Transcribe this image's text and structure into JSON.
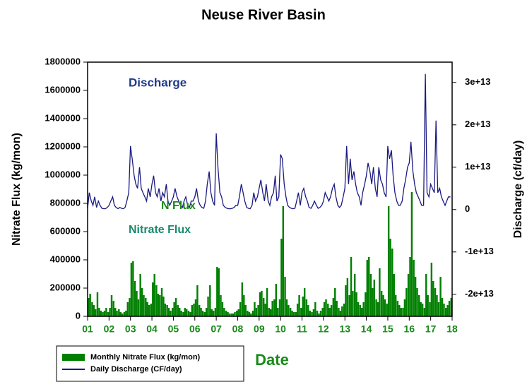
{
  "chart_data": {
    "type": "bar",
    "title": "Neuse River Basin",
    "xlabel": "Date",
    "ylabel": "Nitrate Flux (kg/mon)",
    "y2label": "Discharge (cf/day)",
    "annotations": [
      "Discharge",
      "N Flux",
      "Nitrate Flux"
    ],
    "xlim": [
      1,
      18
    ],
    "xticks": [
      {
        "value": 1,
        "label": "01"
      },
      {
        "value": 2,
        "label": "02"
      },
      {
        "value": 3,
        "label": "03"
      },
      {
        "value": 4,
        "label": "04"
      },
      {
        "value": 5,
        "label": "05"
      },
      {
        "value": 6,
        "label": "06"
      },
      {
        "value": 7,
        "label": "07"
      },
      {
        "value": 8,
        "label": "08"
      },
      {
        "value": 9,
        "label": "09"
      },
      10,
      11,
      12,
      13,
      14,
      15,
      16,
      17,
      18
    ],
    "ylim": [
      0,
      1800000
    ],
    "yticks": [
      0,
      200000,
      400000,
      600000,
      800000,
      1000000,
      1200000,
      1400000,
      1600000,
      1800000
    ],
    "y2lim": [
      -25200000000000.0,
      34800000000000.0
    ],
    "y2ticks": [
      {
        "value": -20000000000000.0,
        "label": "-2e+13"
      },
      {
        "value": -10000000000000.0,
        "label": "-1e+13"
      },
      0,
      {
        "value": 10000000000000.0,
        "label": "1e+13"
      },
      {
        "value": 20000000000000.0,
        "label": "2e+13"
      },
      {
        "value": 30000000000000.0,
        "label": "3e+13"
      }
    ],
    "legend": "bottom-left",
    "x": [
      1.0,
      1.08,
      1.17,
      1.25,
      1.33,
      1.42,
      1.5,
      1.58,
      1.67,
      1.75,
      1.83,
      1.92,
      2.0,
      2.08,
      2.17,
      2.25,
      2.33,
      2.42,
      2.5,
      2.58,
      2.67,
      2.75,
      2.83,
      2.92,
      3.0,
      3.08,
      3.17,
      3.25,
      3.33,
      3.42,
      3.5,
      3.58,
      3.67,
      3.75,
      3.83,
      3.92,
      4.0,
      4.08,
      4.17,
      4.25,
      4.33,
      4.42,
      4.5,
      4.58,
      4.67,
      4.75,
      4.83,
      4.92,
      5.0,
      5.08,
      5.17,
      5.25,
      5.33,
      5.42,
      5.5,
      5.58,
      5.67,
      5.75,
      5.83,
      5.92,
      6.0,
      6.08,
      6.17,
      6.25,
      6.33,
      6.42,
      6.5,
      6.58,
      6.67,
      6.75,
      6.83,
      6.92,
      7.0,
      7.08,
      7.17,
      7.25,
      7.33,
      7.42,
      7.5,
      7.58,
      7.67,
      7.75,
      7.83,
      7.92,
      8.0,
      8.08,
      8.17,
      8.25,
      8.33,
      8.42,
      8.5,
      8.58,
      8.67,
      8.75,
      8.83,
      8.92,
      9.0,
      9.08,
      9.17,
      9.25,
      9.33,
      9.42,
      9.5,
      9.58,
      9.67,
      9.75,
      9.83,
      9.92,
      10.0,
      10.08,
      10.17,
      10.25,
      10.33,
      10.42,
      10.5,
      10.58,
      10.67,
      10.75,
      10.83,
      10.92,
      11.0,
      11.08,
      11.17,
      11.25,
      11.33,
      11.42,
      11.5,
      11.58,
      11.67,
      11.75,
      11.83,
      11.92,
      12.0,
      12.08,
      12.17,
      12.25,
      12.33,
      12.42,
      12.5,
      12.58,
      12.67,
      12.75,
      12.83,
      12.92,
      13.0,
      13.08,
      13.17,
      13.25,
      13.33,
      13.42,
      13.5,
      13.58,
      13.67,
      13.75,
      13.83,
      13.92,
      14.0,
      14.08,
      14.17,
      14.25,
      14.33,
      14.42,
      14.5,
      14.58,
      14.67,
      14.75,
      14.83,
      14.92,
      15.0,
      15.08,
      15.17,
      15.25,
      15.33,
      15.42,
      15.5,
      15.58,
      15.67,
      15.75,
      15.83,
      15.92,
      16.0,
      16.08,
      16.17,
      16.25,
      16.33,
      16.42,
      16.5,
      16.58,
      16.67,
      16.75,
      16.83,
      16.92,
      17.0,
      17.08,
      17.17,
      17.25,
      17.33,
      17.42,
      17.5,
      17.58,
      17.67,
      17.75,
      17.83,
      17.92
    ],
    "series": [
      {
        "name": "Monthly Nitrate Flux (kg/mon)",
        "type": "bar",
        "color": "#008000",
        "values": [
          130000,
          160000,
          100000,
          80000,
          50000,
          170000,
          60000,
          40000,
          30000,
          40000,
          60000,
          30000,
          60000,
          150000,
          110000,
          60000,
          40000,
          50000,
          30000,
          20000,
          30000,
          40000,
          100000,
          130000,
          380000,
          390000,
          250000,
          180000,
          120000,
          300000,
          200000,
          150000,
          130000,
          100000,
          80000,
          90000,
          240000,
          300000,
          220000,
          160000,
          150000,
          200000,
          140000,
          90000,
          80000,
          60000,
          40000,
          60000,
          100000,
          130000,
          80000,
          60000,
          40000,
          30000,
          60000,
          50000,
          40000,
          30000,
          80000,
          90000,
          120000,
          220000,
          80000,
          60000,
          40000,
          30000,
          60000,
          140000,
          220000,
          50000,
          40000,
          60000,
          350000,
          340000,
          150000,
          100000,
          60000,
          40000,
          30000,
          20000,
          20000,
          20000,
          30000,
          40000,
          50000,
          100000,
          240000,
          150000,
          80000,
          40000,
          30000,
          20000,
          40000,
          100000,
          60000,
          80000,
          170000,
          180000,
          130000,
          90000,
          200000,
          60000,
          50000,
          110000,
          120000,
          230000,
          60000,
          120000,
          550000,
          780000,
          280000,
          120000,
          80000,
          60000,
          40000,
          30000,
          30000,
          90000,
          150000,
          60000,
          140000,
          200000,
          120000,
          80000,
          40000,
          30000,
          50000,
          100000,
          40000,
          20000,
          40000,
          60000,
          100000,
          120000,
          90000,
          60000,
          80000,
          130000,
          200000,
          110000,
          60000,
          40000,
          70000,
          90000,
          220000,
          270000,
          150000,
          420000,
          180000,
          300000,
          170000,
          100000,
          80000,
          60000,
          100000,
          170000,
          400000,
          420000,
          300000,
          200000,
          260000,
          120000,
          100000,
          340000,
          180000,
          150000,
          120000,
          90000,
          780000,
          550000,
          480000,
          300000,
          150000,
          110000,
          80000,
          60000,
          60000,
          120000,
          200000,
          300000,
          420000,
          880000,
          400000,
          280000,
          200000,
          150000,
          100000,
          90000,
          60000,
          300000,
          150000,
          100000,
          380000,
          250000,
          200000,
          150000,
          100000,
          280000,
          130000,
          90000,
          60000,
          80000,
          110000,
          130000
        ]
      },
      {
        "name": "Daily Discharge (CF/day)",
        "type": "line",
        "axis": "y2",
        "color": "#1a1a80",
        "values": [
          300000000000.0,
          4000000000000.0,
          2000000000000.0,
          1000000000000.0,
          3000000000000.0,
          500000000000.0,
          2000000000000.0,
          1000000000000.0,
          300000000000.0,
          200000000000.0,
          200000000000.0,
          500000000000.0,
          1000000000000.0,
          2000000000000.0,
          3000000000000.0,
          1000000000000.0,
          500000000000.0,
          200000000000.0,
          500000000000.0,
          300000000000.0,
          200000000000.0,
          500000000000.0,
          2000000000000.0,
          4000000000000.0,
          15000000000000.0,
          12000000000000.0,
          8000000000000.0,
          6000000000000.0,
          5000000000000.0,
          10000000000000.0,
          5000000000000.0,
          4000000000000.0,
          3000000000000.0,
          2000000000000.0,
          5000000000000.0,
          3000000000000.0,
          6000000000000.0,
          8000000000000.0,
          4000000000000.0,
          3000000000000.0,
          5000000000000.0,
          2000000000000.0,
          4000000000000.0,
          3000000000000.0,
          6000000000000.0,
          2000000000000.0,
          1000000000000.0,
          2000000000000.0,
          3000000000000.0,
          5000000000000.0,
          3000000000000.0,
          2000000000000.0,
          1000000000000.0,
          500000000000.0,
          2000000000000.0,
          3000000000000.0,
          1000000000000.0,
          500000000000.0,
          2000000000000.0,
          2000000000000.0,
          3000000000000.0,
          5000000000000.0,
          2000000000000.0,
          1000000000000.0,
          500000000000.0,
          300000000000.0,
          2000000000000.0,
          6000000000000.0,
          9000000000000.0,
          4000000000000.0,
          2000000000000.0,
          1000000000000.0,
          18000000000000.0,
          10000000000000.0,
          4000000000000.0,
          3000000000000.0,
          1000000000000.0,
          500000000000.0,
          300000000000.0,
          200000000000.0,
          200000000000.0,
          300000000000.0,
          500000000000.0,
          1000000000000.0,
          1000000000000.0,
          3000000000000.0,
          6000000000000.0,
          4000000000000.0,
          2000000000000.0,
          500000000000.0,
          300000000000.0,
          200000000000.0,
          1000000000000.0,
          4000000000000.0,
          2000000000000.0,
          3000000000000.0,
          5000000000000.0,
          7000000000000.0,
          4000000000000.0,
          2000000000000.0,
          6000000000000.0,
          2000000000000.0,
          1000000000000.0,
          3000000000000.0,
          4000000000000.0,
          8000000000000.0,
          2000000000000.0,
          3000000000000.0,
          13000000000000.0,
          12000000000000.0,
          6000000000000.0,
          3000000000000.0,
          1000000000000.0,
          500000000000.0,
          300000000000.0,
          200000000000.0,
          300000000000.0,
          2000000000000.0,
          4000000000000.0,
          1000000000000.0,
          4000000000000.0,
          5000000000000.0,
          3000000000000.0,
          2000000000000.0,
          500000000000.0,
          300000000000.0,
          1000000000000.0,
          2000000000000.0,
          1000000000000.0,
          300000000000.0,
          500000000000.0,
          1000000000000.0,
          2000000000000.0,
          4000000000000.0,
          3000000000000.0,
          2000000000000.0,
          3000000000000.0,
          5000000000000.0,
          6000000000000.0,
          3000000000000.0,
          1000000000000.0,
          500000000000.0,
          1000000000000.0,
          3000000000000.0,
          5000000000000.0,
          15000000000000.0,
          6000000000000.0,
          12000000000000.0,
          7000000000000.0,
          9000000000000.0,
          6000000000000.0,
          4000000000000.0,
          3000000000000.0,
          1000000000000.0,
          4000000000000.0,
          6000000000000.0,
          8000000000000.0,
          11000000000000.0,
          9000000000000.0,
          6000000000000.0,
          10000000000000.0,
          5000000000000.0,
          3000000000000.0,
          10000000000000.0,
          7000000000000.0,
          6000000000000.0,
          4000000000000.0,
          3000000000000.0,
          15000000000000.0,
          12000000000000.0,
          14000000000000.0,
          8000000000000.0,
          4000000000000.0,
          2000000000000.0,
          1000000000000.0,
          1000000000000.0,
          2000000000000.0,
          5000000000000.0,
          7000000000000.0,
          10000000000000.0,
          11000000000000.0,
          16000000000000.0,
          9000000000000.0,
          6000000000000.0,
          4000000000000.0,
          3000000000000.0,
          2000000000000.0,
          1000000000000.0,
          1000000000000.0,
          32000000000000.0,
          4000000000000.0,
          3000000000000.0,
          6000000000000.0,
          5000000000000.0,
          4000000000000.0,
          21000000000000.0,
          4000000000000.0,
          5000000000000.0,
          3000000000000.0,
          2000000000000.0,
          1000000000000.0,
          2000000000000.0,
          3000000000000.0,
          3000000000000.0
        ]
      }
    ]
  }
}
